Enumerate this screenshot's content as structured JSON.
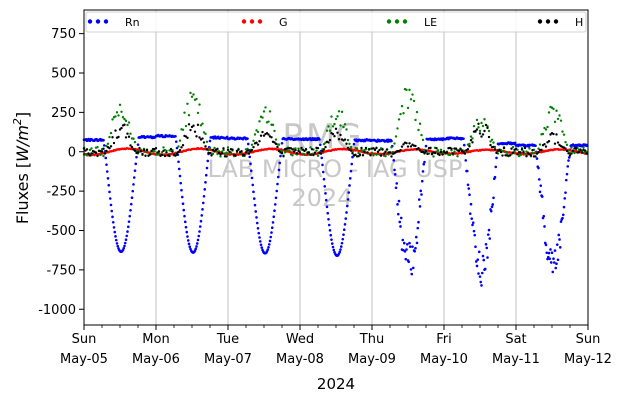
{
  "chart_data": {
    "type": "scatter",
    "title": "",
    "xlabel": "2024",
    "ylabel": "Fluxes [W/m²]",
    "ylabel_parts": {
      "main": "Fluxes [",
      "var": "W/m",
      "sup": "2",
      "close": "]"
    },
    "ylim": [
      -1100,
      900
    ],
    "yticks": [
      750,
      500,
      250,
      0,
      -250,
      -500,
      -750,
      -1000
    ],
    "xlim": [
      0,
      7
    ],
    "xticks": [
      {
        "x": 0,
        "day": "Sun",
        "date": "May-05"
      },
      {
        "x": 1,
        "day": "Mon",
        "date": "May-06"
      },
      {
        "x": 2,
        "day": "Tue",
        "date": "May-07"
      },
      {
        "x": 3,
        "day": "Wed",
        "date": "May-08"
      },
      {
        "x": 4,
        "day": "Thu",
        "date": "May-09"
      },
      {
        "x": 5,
        "day": "Fri",
        "date": "May-10"
      },
      {
        "x": 6,
        "day": "Sat",
        "date": "May-11"
      },
      {
        "x": 7,
        "day": "Sun",
        "date": "May-12"
      }
    ],
    "grid": "vertical-at-days",
    "legend": {
      "placement": "top",
      "ncol": 4
    },
    "series": [
      {
        "name": "Rn",
        "color": "#0000ff"
      },
      {
        "name": "G",
        "color": "#ff0000"
      },
      {
        "name": "LE",
        "color": "#008000"
      },
      {
        "name": "H",
        "color": "#000000"
      }
    ],
    "daily": [
      {
        "day": "May-05",
        "rn_night": 75,
        "rn_min": -635,
        "le_max": 400,
        "h_max": 175,
        "g_min": -20
      },
      {
        "day": "May-06",
        "rn_night": 100,
        "rn_min": -640,
        "le_max": 430,
        "h_max": 190,
        "g_min": -20
      },
      {
        "day": "May-07",
        "rn_night": 85,
        "rn_min": -645,
        "le_max": 340,
        "h_max": 150,
        "g_min": -18
      },
      {
        "day": "May-08",
        "rn_night": 80,
        "rn_min": -660,
        "le_max": 330,
        "h_max": 150,
        "g_min": -18
      },
      {
        "day": "May-09",
        "rn_night": 70,
        "rn_min": -700,
        "le_max": 480,
        "h_max": 70,
        "g_min": -15
      },
      {
        "day": "May-10",
        "rn_night": 85,
        "rn_min": -750,
        "le_max": 260,
        "h_max": 190,
        "g_min": -12
      },
      {
        "day": "May-11",
        "rn_night": 40,
        "rn_min": -700,
        "le_max": 350,
        "h_max": 120,
        "g_min": -15
      }
    ],
    "watermark": {
      "line1": "RMG",
      "line2": "LAB MICRO - IAG USP",
      "line3": "2024"
    }
  }
}
